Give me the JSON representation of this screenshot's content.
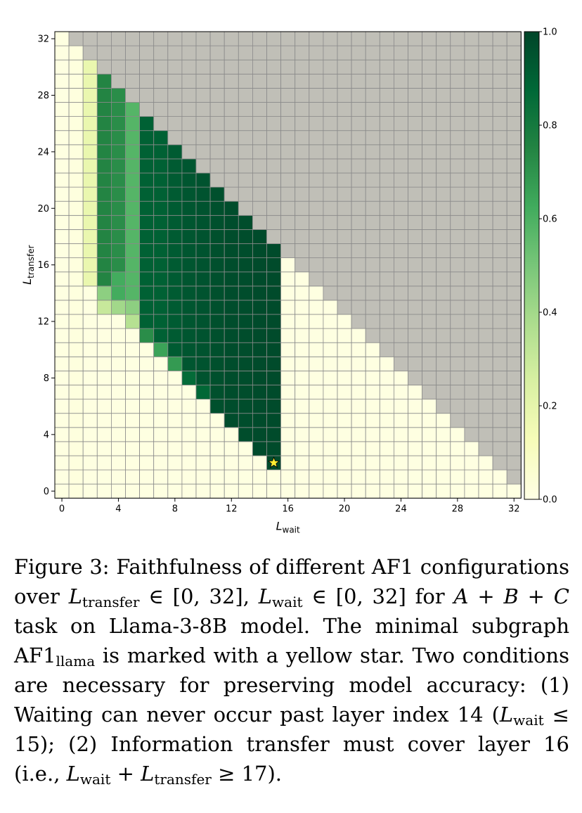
{
  "chart_data": {
    "type": "heatmap",
    "x_axis": {
      "label_main": "L",
      "label_sub": "wait",
      "range": [
        0,
        32
      ],
      "ticks": [
        0,
        4,
        8,
        12,
        16,
        20,
        24,
        28,
        32
      ]
    },
    "y_axis": {
      "label_main": "L",
      "label_sub": "transfer",
      "range": [
        0,
        32
      ],
      "ticks": [
        0,
        4,
        8,
        12,
        16,
        20,
        24,
        28,
        32
      ]
    },
    "colorbar": {
      "range": [
        0,
        1
      ],
      "ticks": [
        "0.0",
        "0.2",
        "0.4",
        "0.6",
        "0.8",
        "1.0"
      ],
      "colormap": "YlGn"
    },
    "invalid_color": "#c0bfb7",
    "invalid_condition": "L_wait + L_transfer > 32",
    "value_rules": [
      {
        "x": 1,
        "y": [
          0,
          31
        ],
        "value": 0.02
      },
      {
        "x": 2,
        "y": [
          15,
          30
        ],
        "value": 0.18
      },
      {
        "x": 3,
        "y": [
          15,
          29
        ],
        "value": 0.75
      },
      {
        "x": 3,
        "y": [
          14,
          14
        ],
        "value": 0.45
      },
      {
        "x": 3,
        "y": [
          13,
          13
        ],
        "value": 0.3
      },
      {
        "x": 4,
        "y": [
          16,
          28
        ],
        "value": 0.72
      },
      {
        "x": 4,
        "y": [
          14,
          15
        ],
        "value": 0.62
      },
      {
        "x": 4,
        "y": [
          13,
          13
        ],
        "value": 0.4
      },
      {
        "x": 5,
        "y": [
          14,
          27
        ],
        "value": 0.58
      },
      {
        "x": 5,
        "y": [
          13,
          13
        ],
        "value": 0.45
      },
      {
        "x": 5,
        "y": [
          12,
          12
        ],
        "value": 0.35
      },
      {
        "x": 6,
        "y": [
          12,
          26
        ],
        "value": 0.9
      },
      {
        "x": 6,
        "y": [
          11,
          11
        ],
        "value": 0.72
      },
      {
        "x": 7,
        "y": [
          11,
          25
        ],
        "value": 0.9
      },
      {
        "x": 7,
        "y": [
          10,
          10
        ],
        "value": 0.65
      },
      {
        "x": 8,
        "y": [
          10,
          24
        ],
        "value": 0.92
      },
      {
        "x": 8,
        "y": [
          9,
          9
        ],
        "value": 0.68
      },
      {
        "x": 9,
        "y": [
          9,
          23
        ],
        "value": 0.94
      },
      {
        "x": 9,
        "y": [
          8,
          8
        ],
        "value": 0.86
      },
      {
        "x": 10,
        "y": [
          8,
          22
        ],
        "value": 0.95
      },
      {
        "x": 10,
        "y": [
          7,
          7
        ],
        "value": 0.88
      },
      {
        "x": 11,
        "y": [
          6,
          21
        ],
        "value": 0.96
      },
      {
        "x": 12,
        "y": [
          5,
          20
        ],
        "value": 0.97
      },
      {
        "x": 13,
        "y": [
          4,
          19
        ],
        "value": 0.97
      },
      {
        "x": 14,
        "y": [
          3,
          18
        ],
        "value": 0.98
      },
      {
        "x": 15,
        "y": [
          2,
          17
        ],
        "value": 0.98
      }
    ],
    "default_value": 0.01,
    "marker": {
      "x": 15,
      "y": 2,
      "symbol": "star",
      "color": "#ffee33"
    }
  },
  "caption": {
    "figure_label": "Figure 3:",
    "text1": "Faithfulness of different AF1 configurations over",
    "sym_L": "L",
    "sub_transfer": "transfer",
    "sub_wait": "wait",
    "range_part1": " ∈ [0, 32], ",
    "range_part2": " ∈ [0, 32] for ",
    "abc": "A + B + C",
    "text2": " task on Llama-3-8B model.  The minimal subgraph ",
    "af1": "AF1",
    "sub_llama": "llama",
    "text3": " is marked with a yellow star.  Two conditions are necessary for preserving model accuracy: (1) Waiting can never occur past layer index 14 (",
    "cond1": " ≤ 15); (2) Information transfer must cover layer 16 (i.e., ",
    "plus": " + ",
    "cond2": " ≥ 17)."
  }
}
